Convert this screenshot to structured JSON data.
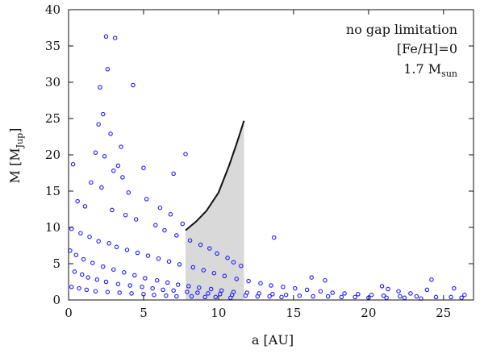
{
  "chart_data": {
    "type": "scatter",
    "title": "",
    "xlabel": "a [AU]",
    "ylabel": "M [M_Jup]",
    "ylabel_main": "M [M",
    "ylabel_sub": "Jup",
    "ylabel_close": "]",
    "xlim": [
      0,
      27
    ],
    "ylim": [
      0,
      40
    ],
    "xticks": [
      0,
      5,
      10,
      15,
      20,
      25
    ],
    "yticks": [
      0,
      5,
      10,
      15,
      20,
      25,
      30,
      35,
      40
    ],
    "grid": false,
    "annotations": {
      "line1": "no gap limitation",
      "line2": "[Fe/H]=0",
      "line3_main": "1.7 M",
      "line3_sub": "sun"
    },
    "colors": {
      "points": "#1a1aff",
      "curve": "#111111",
      "shade": "#d9d9d9",
      "axes": "#111111"
    },
    "shaded_region": {
      "x": [
        7.8,
        8.5,
        9.2,
        10.0,
        10.7,
        11.2,
        11.7
      ],
      "upper": [
        9.6,
        10.8,
        12.3,
        14.8,
        18.5,
        21.5,
        24.7
      ],
      "lower": [
        0,
        0,
        0,
        0,
        0,
        0,
        0
      ]
    },
    "curve": {
      "x": [
        7.8,
        8.5,
        9.2,
        10.0,
        10.7,
        11.2,
        11.7
      ],
      "y": [
        9.6,
        10.8,
        12.3,
        14.8,
        18.5,
        21.5,
        24.7
      ]
    },
    "series": [
      {
        "name": "",
        "x": [
          2.5,
          3.1,
          2.6,
          4.3,
          2.1,
          2.3,
          2.0,
          2.8,
          3.5,
          1.8,
          2.4,
          0.3,
          5.0,
          7.0,
          7.8,
          3.3,
          3.0,
          3.6,
          1.5,
          2.2,
          4.0,
          5.2,
          6.1,
          6.8,
          7.6,
          0.6,
          1.1,
          2.9,
          3.8,
          4.5,
          5.8,
          6.4,
          7.2,
          8.1,
          8.8,
          9.4,
          9.9,
          10.6,
          11.0,
          11.5,
          13.7,
          16.2,
          17.1,
          20.9,
          21.3,
          22.0,
          22.8,
          23.9,
          24.2,
          25.7,
          26.4,
          0.2,
          0.8,
          1.4,
          2.0,
          2.7,
          3.2,
          3.9,
          4.6,
          5.3,
          6.0,
          6.7,
          7.4,
          8.3,
          9.0,
          9.7,
          10.4,
          11.2,
          12.0,
          12.8,
          13.5,
          14.3,
          15.1,
          15.9,
          16.8,
          17.6,
          18.4,
          19.3,
          20.2,
          21.0,
          22.1,
          23.2,
          24.5,
          25.5,
          26.2,
          0.1,
          0.5,
          1.0,
          1.6,
          2.3,
          3.0,
          3.7,
          4.4,
          5.1,
          5.9,
          6.6,
          7.3,
          8.0,
          8.7,
          9.5,
          10.2,
          11.0,
          11.9,
          12.7,
          13.6,
          14.5,
          15.4,
          16.3,
          17.3,
          18.2,
          19.1,
          20.0,
          21.2,
          22.4,
          23.5,
          0.4,
          0.9,
          1.3,
          1.9,
          2.5,
          3.3,
          4.1,
          4.9,
          5.6,
          6.3,
          7.0,
          7.9,
          8.6,
          9.3,
          10.1,
          10.9,
          11.8,
          12.6,
          13.4,
          14.2,
          0.2,
          0.7,
          1.2,
          1.8,
          2.6,
          3.4,
          4.2,
          5.0,
          5.7,
          6.5,
          7.2,
          8.2,
          9.1,
          9.8,
          10.8
        ],
        "y": [
          36.3,
          36.1,
          31.8,
          29.6,
          29.3,
          25.6,
          24.2,
          22.9,
          21.1,
          20.3,
          19.8,
          18.7,
          18.2,
          17.4,
          20.1,
          18.5,
          17.8,
          16.9,
          16.2,
          15.5,
          14.8,
          13.9,
          12.7,
          11.8,
          10.5,
          13.6,
          12.9,
          12.4,
          11.7,
          11.1,
          10.3,
          9.6,
          8.9,
          8.2,
          7.6,
          7.1,
          6.4,
          5.8,
          5.2,
          4.7,
          8.6,
          3.1,
          2.7,
          1.9,
          1.5,
          1.2,
          0.9,
          1.4,
          2.8,
          1.6,
          0.7,
          9.8,
          9.2,
          8.7,
          8.1,
          7.8,
          7.3,
          6.9,
          6.5,
          6.1,
          5.7,
          5.3,
          4.9,
          4.5,
          4.1,
          3.7,
          3.3,
          2.9,
          2.6,
          2.3,
          2.0,
          1.8,
          1.6,
          1.4,
          1.2,
          1.0,
          0.9,
          0.8,
          0.7,
          0.6,
          0.5,
          0.5,
          0.4,
          0.4,
          0.3,
          6.8,
          6.2,
          5.6,
          5.1,
          4.6,
          4.2,
          3.8,
          3.4,
          3.0,
          2.7,
          2.4,
          2.1,
          1.9,
          1.7,
          1.5,
          1.3,
          1.1,
          1.0,
          0.9,
          0.8,
          0.7,
          0.6,
          0.5,
          0.5,
          0.4,
          0.4,
          0.3,
          0.3,
          0.3,
          0.2,
          3.9,
          3.5,
          3.1,
          2.8,
          2.5,
          2.2,
          2.0,
          1.8,
          1.6,
          1.4,
          1.3,
          1.1,
          1.0,
          0.9,
          0.8,
          0.7,
          0.6,
          0.5,
          0.5,
          0.4,
          1.8,
          1.6,
          1.4,
          1.2,
          1.1,
          1.0,
          0.9,
          0.8,
          0.7,
          0.6,
          0.5,
          0.5,
          0.4,
          0.4,
          0.3
        ]
      }
    ]
  }
}
